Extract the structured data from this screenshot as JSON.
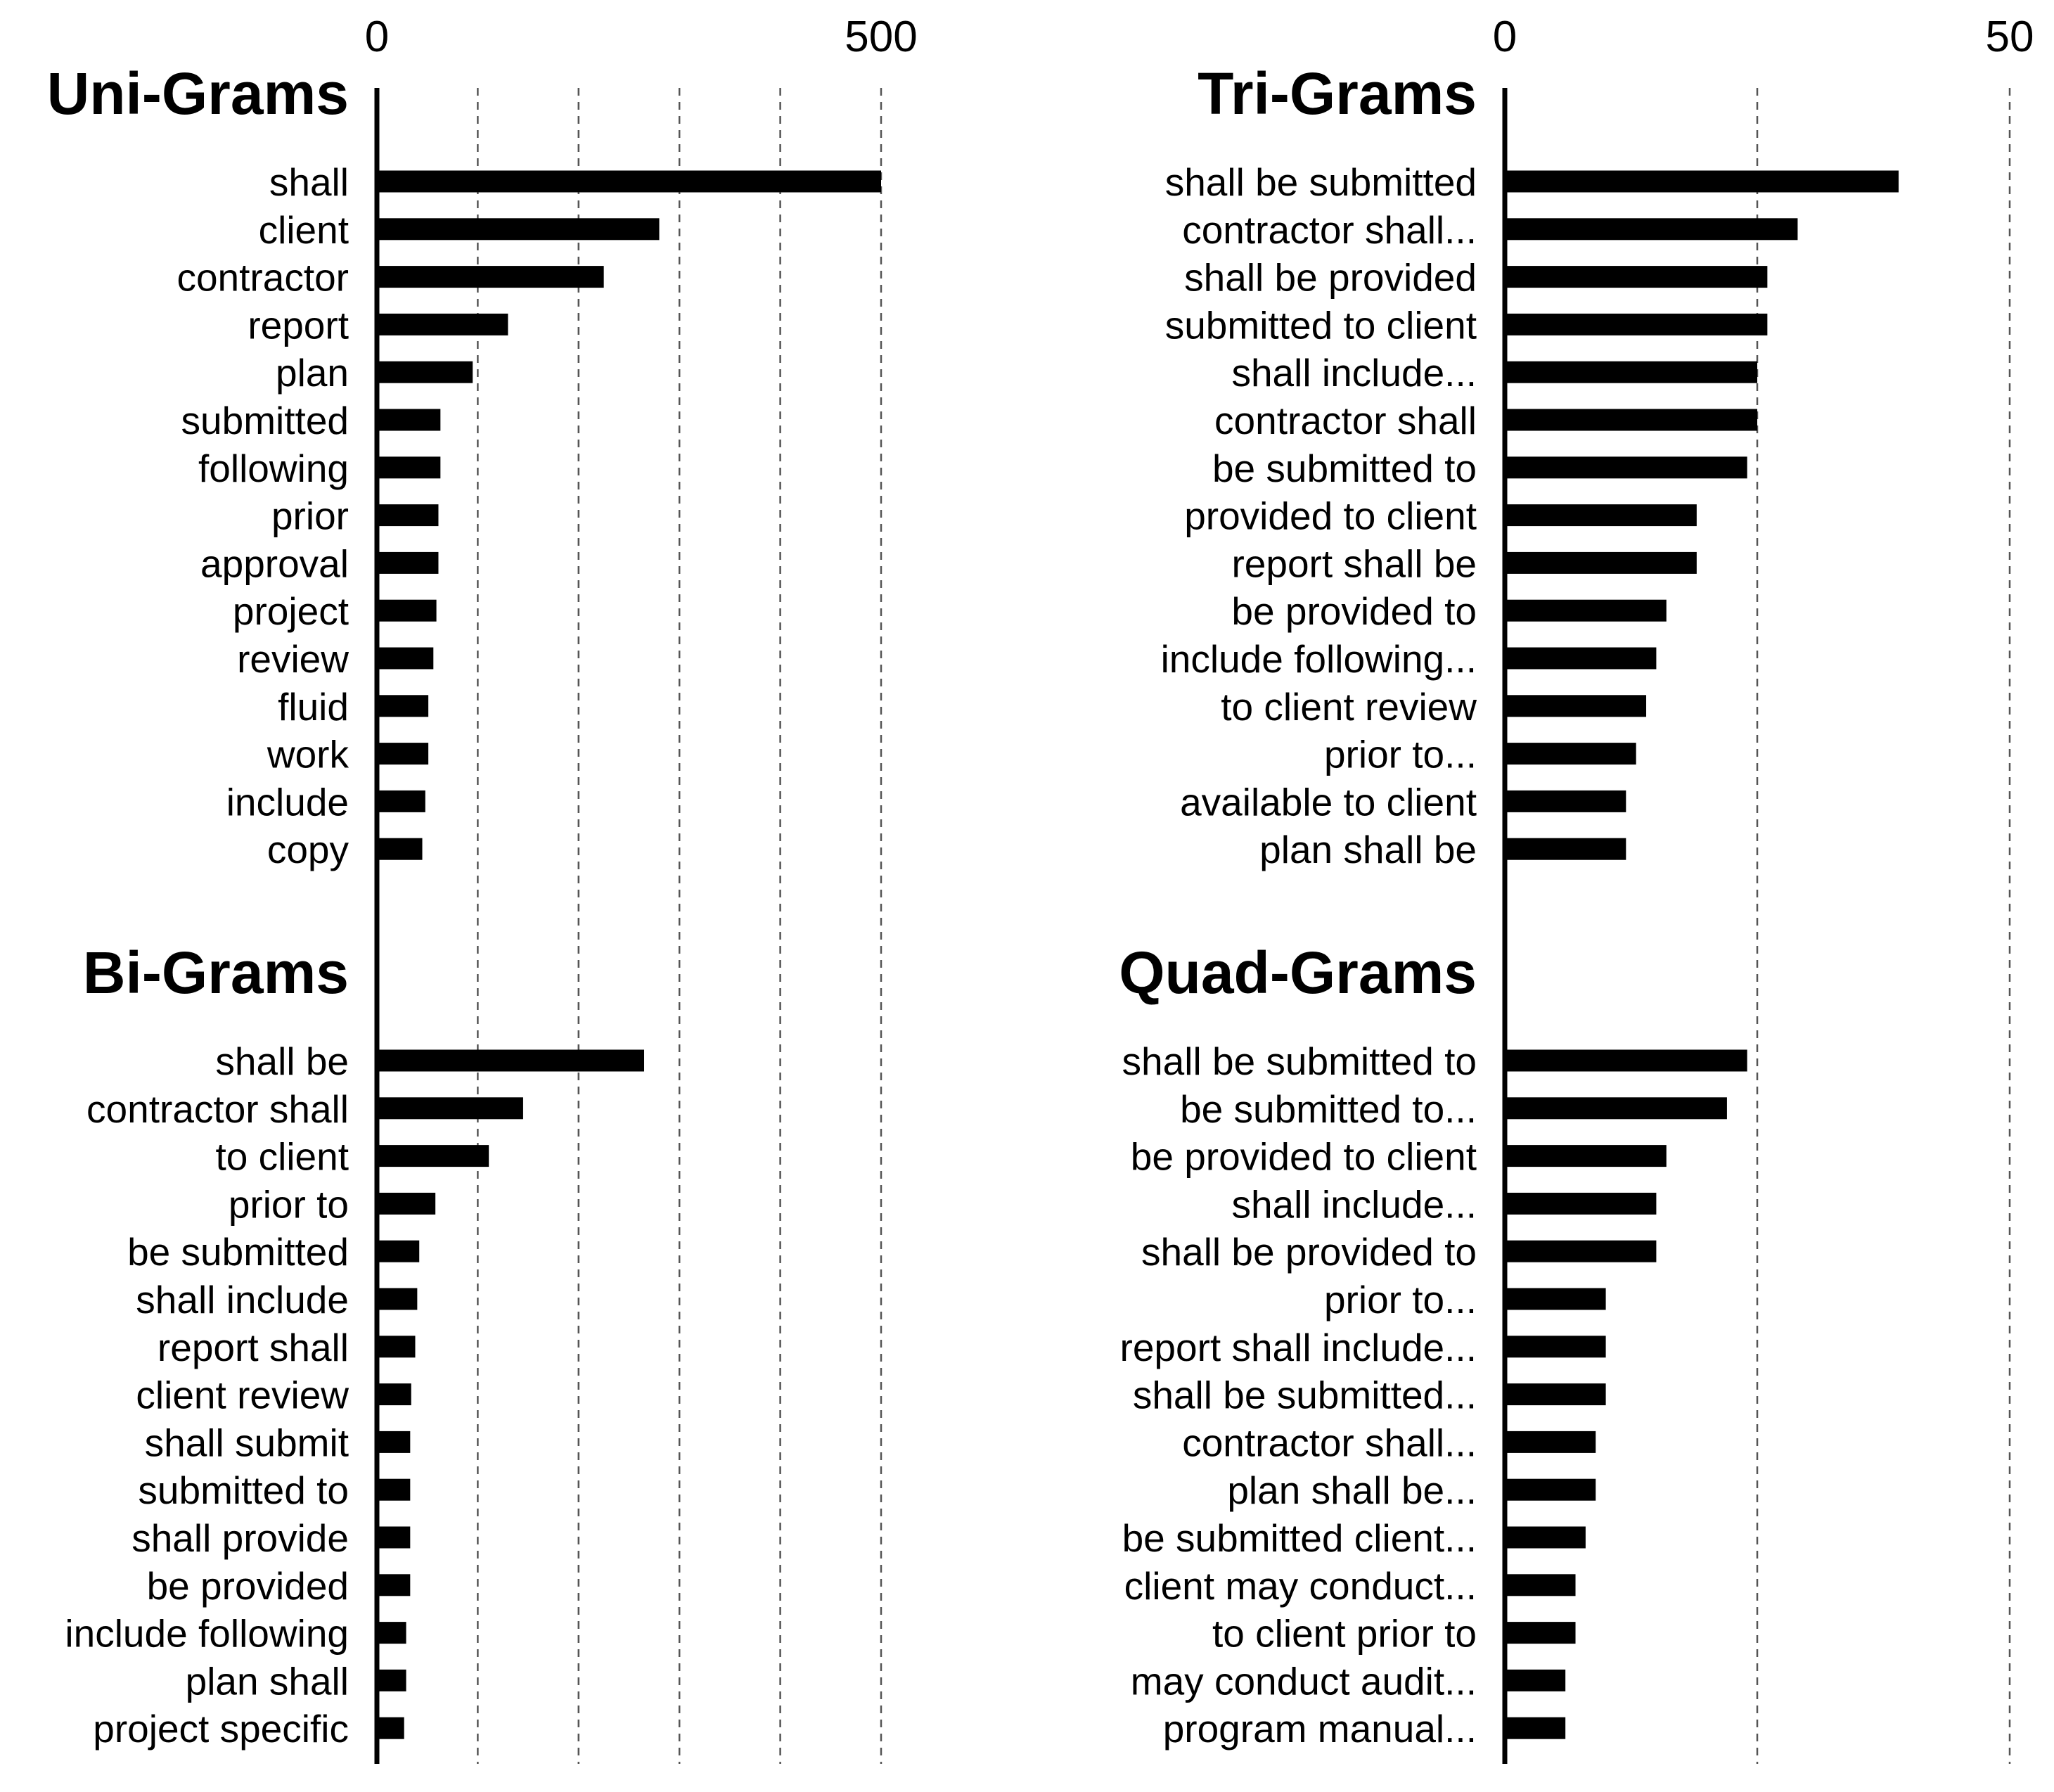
{
  "chart_data": {
    "type": "bar",
    "orientation": "horizontal",
    "columns": [
      {
        "id": "left",
        "axis": {
          "xlim": [
            0,
            500
          ],
          "tick_labels": [
            "0",
            "500"
          ],
          "gridlines": [
            100,
            200,
            300,
            400,
            500
          ],
          "grid": "dashed"
        },
        "panels": [
          {
            "id": "uni",
            "title": "Uni-Grams",
            "categories": [
              "shall",
              "client",
              "contractor",
              "report",
              "plan",
              "submitted",
              "following",
              "prior",
              "approval",
              "project",
              "review",
              "fluid",
              "work",
              "include",
              "copy"
            ],
            "values": [
              500,
              280,
              225,
              130,
              95,
              63,
              63,
              61,
              61,
              59,
              56,
              51,
              51,
              48,
              45
            ]
          },
          {
            "id": "bi",
            "title": "Bi-Grams",
            "categories": [
              "shall be",
              "contractor shall",
              "to client",
              "prior to",
              "be submitted",
              "shall include",
              "report shall",
              "client review",
              "shall submit",
              "submitted to",
              "shall provide",
              "be provided",
              "include following",
              "plan shall",
              "project specific"
            ],
            "values": [
              265,
              145,
              111,
              58,
              42,
              40,
              38,
              34,
              33,
              33,
              33,
              33,
              29,
              29,
              27
            ]
          }
        ]
      },
      {
        "id": "right",
        "axis": {
          "xlim": [
            0,
            50
          ],
          "tick_labels": [
            "0",
            "50"
          ],
          "gridlines": [
            25,
            50
          ],
          "grid": "dashed"
        },
        "panels": [
          {
            "id": "tri",
            "title": "Tri-Grams",
            "categories": [
              "shall be submitted",
              "contractor shall...",
              "shall be provided",
              "submitted to client",
              "shall include...",
              "contractor shall",
              "be submitted to",
              "provided to client",
              "report shall be",
              "be provided to",
              "include following...",
              "to client review",
              "prior to...",
              "available to client",
              "plan shall be"
            ],
            "values": [
              39,
              29,
              26,
              26,
              25,
              25,
              24,
              19,
              19,
              16,
              15,
              14,
              13,
              12,
              12
            ]
          },
          {
            "id": "quad",
            "title": "Quad-Grams",
            "categories": [
              "shall be submitted to",
              "be submitted to...",
              "be provided to client",
              "shall include...",
              "shall be provided to",
              "prior to...",
              "report shall include...",
              "shall be submitted...",
              "contractor shall...",
              "plan shall be...",
              "be submitted client...",
              "client may conduct...",
              "to client prior to",
              "may conduct audit...",
              "program manual..."
            ],
            "values": [
              24,
              22,
              16,
              15,
              15,
              10,
              10,
              10,
              9,
              9,
              8,
              7,
              7,
              6,
              6
            ]
          }
        ]
      }
    ]
  }
}
